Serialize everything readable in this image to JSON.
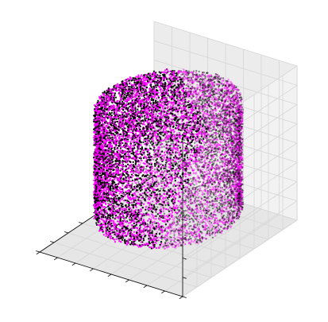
{
  "chart_data": {
    "type": "scatter",
    "projection": "3d",
    "title": "",
    "xlabel": "",
    "ylabel": "",
    "zlabel": "",
    "tick_labels_shown": false,
    "grid": true,
    "xlim": [
      -1,
      1
    ],
    "ylim": [
      -1,
      1
    ],
    "zlim": [
      -1,
      1
    ],
    "x_ticks": [
      -1.0,
      -0.75,
      -0.5,
      -0.25,
      0.0,
      0.25,
      0.5,
      0.75,
      1.0
    ],
    "y_ticks": [
      -1.0,
      -0.75,
      -0.5,
      -0.25,
      0.0,
      0.25,
      0.5,
      0.75,
      1.0
    ],
    "z_ticks": [
      -1.0,
      -0.75,
      -0.5,
      -0.25,
      0.0,
      0.25,
      0.5,
      0.75,
      1.0
    ],
    "series": [
      {
        "shape": "cylinder",
        "center": [
          0,
          0,
          0
        ],
        "radius": 0.8,
        "z_range": [
          -0.7,
          0.7
        ],
        "point_count": 12000,
        "marker_colors": [
          "#000000",
          "#ff00ff"
        ]
      }
    ]
  },
  "colors": {
    "pane_back": "#ececec",
    "pane_side": "#f2f2f2",
    "pane_floor": "#e6e6e6",
    "grid": "#d6d6d6",
    "axis_line": "#000000",
    "marker_black": "#000000",
    "marker_magenta": "#ff00ff"
  }
}
